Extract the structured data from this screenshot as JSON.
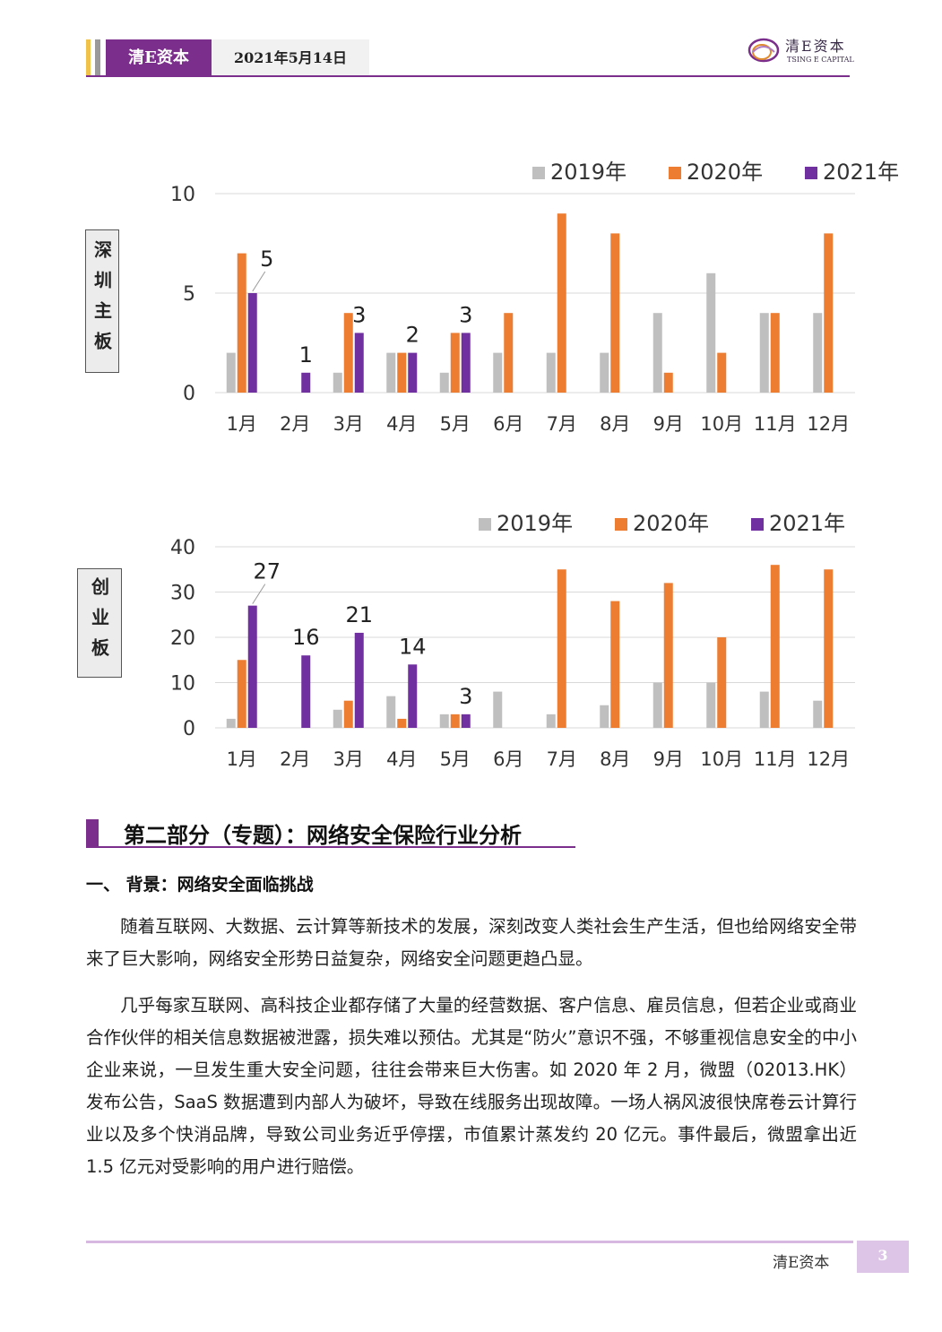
{
  "header": {
    "brand": "清E资本",
    "date": "2021年5月14日",
    "logo_cn": "清E资本",
    "logo_en": "TSING E CAPITAL",
    "colors": {
      "accent": "#7b2e8c",
      "strip_yellow": "#f0c24a",
      "strip_gray": "#9a9a9a"
    }
  },
  "charts": {
    "shenzhen": {
      "side_label": "深圳主板"
    },
    "chinext": {
      "side_label": "创业板"
    }
  },
  "chart_data": [
    {
      "type": "bar",
      "categories": [
        "1月",
        "2月",
        "3月",
        "4月",
        "5月",
        "6月",
        "7月",
        "8月",
        "9月",
        "10月",
        "11月",
        "12月"
      ],
      "series": [
        {
          "name": "2019年",
          "color": "#bfbfbf",
          "values": [
            2,
            0,
            1,
            2,
            1,
            2,
            2,
            2,
            4,
            6,
            4,
            4
          ]
        },
        {
          "name": "2020年",
          "color": "#ed7d31",
          "values": [
            7,
            0,
            4,
            2,
            3,
            4,
            9,
            8,
            1,
            2,
            4,
            8
          ]
        },
        {
          "name": "2021年",
          "color": "#7030a0",
          "values": [
            5,
            1,
            3,
            2,
            3,
            null,
            null,
            null,
            null,
            null,
            null,
            null
          ]
        }
      ],
      "data_labels": {
        "series": "2021年",
        "values": [
          "5",
          "1",
          "3",
          "2",
          "3"
        ]
      },
      "yticks": [
        "0",
        "5",
        "10"
      ],
      "ylim": [
        0,
        10
      ],
      "grid": true,
      "legend": "top-right"
    },
    {
      "type": "bar",
      "categories": [
        "1月",
        "2月",
        "3月",
        "4月",
        "5月",
        "6月",
        "7月",
        "8月",
        "9月",
        "10月",
        "11月",
        "12月"
      ],
      "series": [
        {
          "name": "2019年",
          "color": "#bfbfbf",
          "values": [
            2,
            0,
            4,
            7,
            3,
            8,
            3,
            5,
            10,
            10,
            8,
            6
          ]
        },
        {
          "name": "2020年",
          "color": "#ed7d31",
          "values": [
            15,
            0,
            6,
            2,
            3,
            0,
            35,
            28,
            32,
            20,
            36,
            35
          ]
        },
        {
          "name": "2021年",
          "color": "#7030a0",
          "values": [
            27,
            16,
            21,
            14,
            3,
            null,
            null,
            null,
            null,
            null,
            null,
            null
          ]
        }
      ],
      "data_labels": {
        "series": "2021年",
        "values": [
          "27",
          "16",
          "21",
          "14",
          "3"
        ]
      },
      "yticks": [
        "0",
        "10",
        "20",
        "30",
        "40"
      ],
      "ylim": [
        0,
        40
      ],
      "grid": true,
      "legend": "top-right"
    }
  ],
  "section": {
    "title": "第二部分（专题）：网络安全保险行业分析",
    "subtitle": "一、 背景：网络安全面临挑战",
    "paragraphs": [
      "随着互联网、大数据、云计算等新技术的发展，深刻改变人类社会生产生活，但也给网络安全带来了巨大影响，网络安全形势日益复杂，网络安全问题更趋凸显。",
      "几乎每家互联网、高科技企业都存储了大量的经营数据、客户信息、雇员信息，但若企业或商业合作伙伴的相关信息数据被泄露，损失难以预估。尤其是“防火”意识不强，不够重视信息安全的中小企业来说，一旦发生重大安全问题，往往会带来巨大伤害。如 2020 年 2 月，微盟（02013.HK）发布公告，SaaS 数据遭到内部人为破坏，导致在线服务出现故障。一场人祸风波很快席卷云计算行业以及多个快消品牌，导致公司业务近乎停摆，市值累计蒸发约 20 亿元。事件最后，微盟拿出近 1.5 亿元对受影响的用户进行赔偿。"
    ]
  },
  "footer": {
    "brand": "清E资本",
    "page_number": "3"
  }
}
